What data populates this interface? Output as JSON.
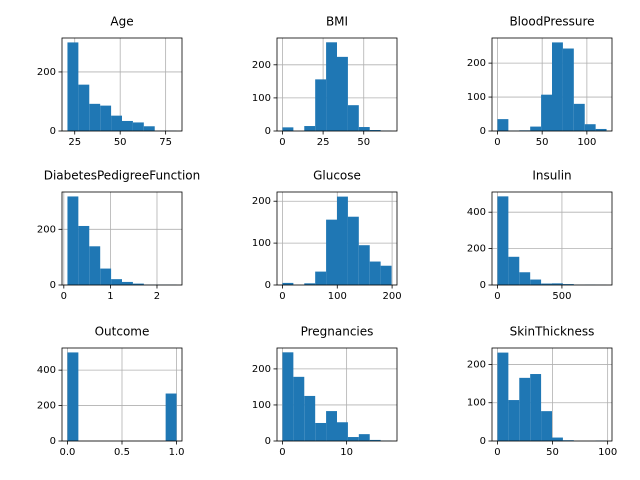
{
  "chart_data": [
    {
      "type": "histogram",
      "title": "Age",
      "color": "#1f77b4",
      "grid": true,
      "bins": [
        21,
        27,
        33,
        39,
        45,
        51,
        57,
        63,
        69,
        75,
        81
      ],
      "values": [
        300,
        157,
        92,
        86,
        52,
        34,
        29,
        16,
        1,
        1
      ],
      "xlim": [
        18,
        84
      ],
      "xticks": [
        25,
        50,
        75
      ],
      "ylim": [
        0,
        315
      ],
      "yticks": [
        0,
        200
      ]
    },
    {
      "type": "histogram",
      "title": "BMI",
      "color": "#1f77b4",
      "grid": true,
      "bins": [
        0,
        6.71,
        13.42,
        20.13,
        26.84,
        33.55,
        40.26,
        46.97,
        53.68,
        60.39,
        67.1
      ],
      "values": [
        11,
        0,
        15,
        156,
        268,
        224,
        78,
        12,
        3,
        1
      ],
      "xlim": [
        -3.36,
        70.46
      ],
      "xticks": [
        0,
        25,
        50
      ],
      "ylim": [
        0,
        281
      ],
      "yticks": [
        0,
        100,
        200
      ]
    },
    {
      "type": "histogram",
      "title": "BloodPressure",
      "color": "#1f77b4",
      "grid": true,
      "bins": [
        0,
        12.2,
        24.4,
        36.6,
        48.8,
        61,
        73.2,
        85.4,
        97.6,
        109.8,
        122
      ],
      "values": [
        35,
        1,
        2,
        13,
        107,
        261,
        243,
        80,
        20,
        6
      ],
      "xlim": [
        -6.1,
        128.1
      ],
      "xticks": [
        0,
        50,
        100
      ],
      "ylim": [
        0,
        274
      ],
      "yticks": [
        0,
        100,
        200
      ]
    },
    {
      "type": "histogram",
      "title": "DiabetesPedigreeFunction",
      "color": "#1f77b4",
      "grid": true,
      "bins": [
        0.078,
        0.312,
        0.546,
        0.781,
        1.015,
        1.249,
        1.483,
        1.718,
        1.952,
        2.186,
        2.42
      ],
      "values": [
        318,
        212,
        139,
        59,
        21,
        11,
        5,
        1,
        1,
        1
      ],
      "xlim": [
        -0.039,
        2.537
      ],
      "xticks": [
        0,
        1,
        2
      ],
      "ylim": [
        0,
        334
      ],
      "yticks": [
        0,
        200
      ]
    },
    {
      "type": "histogram",
      "title": "Glucose",
      "color": "#1f77b4",
      "grid": true,
      "bins": [
        0,
        19.9,
        39.8,
        59.7,
        79.6,
        99.5,
        119.4,
        139.3,
        159.2,
        179.1,
        199
      ],
      "values": [
        5,
        0,
        4,
        32,
        156,
        211,
        163,
        95,
        56,
        46
      ],
      "xlim": [
        -9.95,
        208.95
      ],
      "xticks": [
        0,
        100,
        200
      ],
      "ylim": [
        0,
        222
      ],
      "yticks": [
        0,
        100,
        200
      ]
    },
    {
      "type": "histogram",
      "title": "Insulin",
      "color": "#1f77b4",
      "grid": true,
      "bins": [
        0,
        84.6,
        169.2,
        253.8,
        338.4,
        423,
        507.6,
        592.2,
        676.8,
        761.4,
        846
      ],
      "values": [
        487,
        155,
        70,
        30,
        8,
        9,
        5,
        1,
        2,
        1
      ],
      "xlim": [
        -42.3,
        888.3
      ],
      "xticks": [
        0,
        500
      ],
      "ylim": [
        0,
        511
      ],
      "yticks": [
        0,
        200,
        400
      ]
    },
    {
      "type": "histogram",
      "title": "Outcome",
      "color": "#1f77b4",
      "grid": true,
      "bins": [
        0,
        0.1,
        0.2,
        0.3,
        0.4,
        0.5,
        0.6,
        0.7,
        0.8,
        0.9,
        1
      ],
      "values": [
        500,
        0,
        0,
        0,
        0,
        0,
        0,
        0,
        0,
        268
      ],
      "xlim": [
        -0.05,
        1.05
      ],
      "xticks": [
        {
          "value": 0,
          "label": "0.0"
        },
        0.5,
        {
          "value": 1,
          "label": "1.0"
        }
      ],
      "ylim": [
        0,
        525
      ],
      "yticks": [
        0,
        200,
        400
      ]
    },
    {
      "type": "histogram",
      "title": "Pregnancies",
      "color": "#1f77b4",
      "grid": true,
      "bins": [
        0,
        1.7,
        3.4,
        5.1,
        6.8,
        8.5,
        10.2,
        11.9,
        13.6,
        15.3,
        17
      ],
      "values": [
        246,
        178,
        125,
        50,
        83,
        52,
        11,
        19,
        3,
        1
      ],
      "xlim": [
        -0.85,
        17.85
      ],
      "xticks": [
        0,
        10
      ],
      "ylim": [
        0,
        258
      ],
      "yticks": [
        0,
        100,
        200
      ]
    },
    {
      "type": "histogram",
      "title": "SkinThickness",
      "color": "#1f77b4",
      "grid": true,
      "bins": [
        0,
        9.9,
        19.8,
        29.7,
        39.6,
        49.5,
        59.4,
        69.3,
        79.2,
        89.1,
        99
      ],
      "values": [
        231,
        107,
        165,
        175,
        78,
        9,
        2,
        0,
        0,
        1
      ],
      "xlim": [
        -4.95,
        103.95
      ],
      "xticks": [
        0,
        50,
        100
      ],
      "ylim": [
        0,
        243
      ],
      "yticks": [
        0,
        100,
        200
      ]
    }
  ]
}
